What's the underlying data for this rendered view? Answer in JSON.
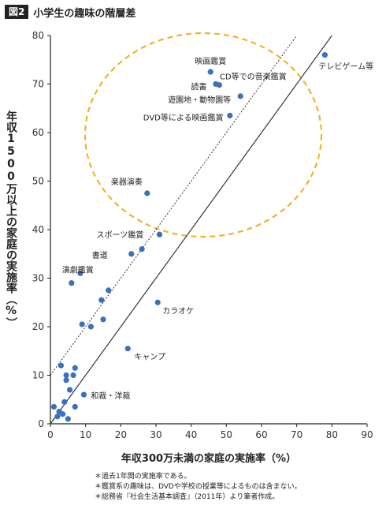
{
  "header": {
    "figure_tag": "図2",
    "title": "小学生の趣味の階層差"
  },
  "notes": [
    "＊過去1年間の実施率である。",
    "＊鑑賞系の趣味は、DVDや学校の授業等によるものは含まない。",
    "＊総務省『社会生活基本調査』（2011年）より筆者作成。"
  ],
  "chart_data": {
    "type": "scatter",
    "xlabel": "年収300万未満の家庭の実施率（%）",
    "ylabel": "年収1500万以上の家庭の実施率（%）",
    "xlim": [
      0,
      90
    ],
    "ylim": [
      0,
      80
    ],
    "xticks": [
      0,
      10,
      20,
      30,
      40,
      50,
      60,
      70,
      80,
      90
    ],
    "yticks": [
      0,
      10,
      20,
      30,
      40,
      50,
      60,
      70,
      80
    ],
    "grid": false,
    "reference_lines": [
      {
        "style": "solid",
        "slope": 1,
        "intercept": 0
      },
      {
        "style": "dotted",
        "slope": 1,
        "intercept": 10
      }
    ],
    "highlight_ellipse_color": "#f0b429",
    "point_color": "#3a70c0",
    "points": [
      {
        "x": 78,
        "y": 76,
        "label": "テレビゲーム等"
      },
      {
        "x": 45.5,
        "y": 72.5,
        "label": "映画鑑賞"
      },
      {
        "x": 47,
        "y": 70,
        "label": "CD等での音楽鑑賞"
      },
      {
        "x": 48,
        "y": 69.8,
        "label": "読書"
      },
      {
        "x": 54,
        "y": 67.5,
        "label": "遊園地・動物園等"
      },
      {
        "x": 51,
        "y": 63.5,
        "label": "DVD等による映画鑑賞"
      },
      {
        "x": 27.5,
        "y": 47.5,
        "label": "楽器演奏"
      },
      {
        "x": 31,
        "y": 39,
        "label": "スポーツ鑑賞"
      },
      {
        "x": 26,
        "y": 36,
        "label": ""
      },
      {
        "x": 23,
        "y": 35,
        "label": "書道"
      },
      {
        "x": 6,
        "y": 29,
        "label": "演劇鑑賞"
      },
      {
        "x": 8.5,
        "y": 31,
        "label": ""
      },
      {
        "x": 16.5,
        "y": 27.5,
        "label": ""
      },
      {
        "x": 14.5,
        "y": 25.5,
        "label": ""
      },
      {
        "x": 30.5,
        "y": 25,
        "label": "カラオケ"
      },
      {
        "x": 15,
        "y": 21.5,
        "label": ""
      },
      {
        "x": 9,
        "y": 20.5,
        "label": ""
      },
      {
        "x": 11.5,
        "y": 20,
        "label": ""
      },
      {
        "x": 22,
        "y": 15.5,
        "label": "キャンプ"
      },
      {
        "x": 3,
        "y": 12,
        "label": ""
      },
      {
        "x": 7,
        "y": 11.5,
        "label": ""
      },
      {
        "x": 4.5,
        "y": 10,
        "label": ""
      },
      {
        "x": 6.5,
        "y": 10,
        "label": ""
      },
      {
        "x": 4.5,
        "y": 9,
        "label": ""
      },
      {
        "x": 5.5,
        "y": 7,
        "label": ""
      },
      {
        "x": 9.5,
        "y": 6,
        "label": "和裁・洋裁"
      },
      {
        "x": 4,
        "y": 4.5,
        "label": ""
      },
      {
        "x": 1,
        "y": 3.5,
        "label": ""
      },
      {
        "x": 7,
        "y": 3.5,
        "label": ""
      },
      {
        "x": 2.5,
        "y": 2.5,
        "label": ""
      },
      {
        "x": 3.5,
        "y": 2,
        "label": ""
      },
      {
        "x": 2,
        "y": 1.5,
        "label": ""
      },
      {
        "x": 5,
        "y": 1,
        "label": ""
      }
    ]
  }
}
